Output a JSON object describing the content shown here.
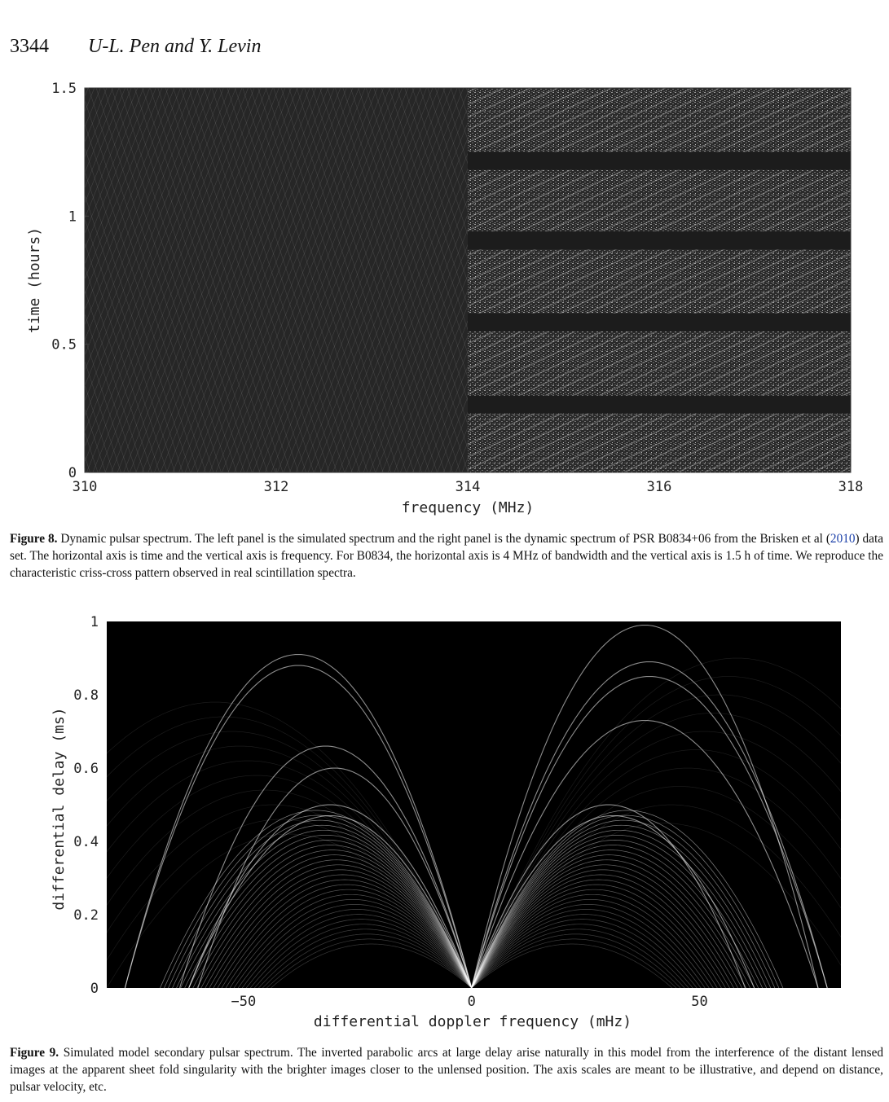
{
  "header": {
    "page_number": "3344",
    "authors": "U-L. Pen and Y. Levin"
  },
  "figure8": {
    "caption_label": "Figure 8.",
    "caption_pre": "Dynamic pulsar spectrum. The left panel is the simulated spectrum and the right panel is the dynamic spectrum of PSR B0834+06 from the Brisken et al (",
    "caption_cite": "2010",
    "caption_post": ") data set. The horizontal axis is time and the vertical axis is frequency. For B0834, the horizontal axis is 4 MHz of bandwidth and the vertical axis is 1.5 h of time. We reproduce the characteristic criss-cross pattern observed in real scintillation spectra.",
    "chart_data": {
      "type": "heatmap",
      "xlabel": "frequency (MHz)",
      "ylabel": "time (hours)",
      "xlim": [
        310,
        318
      ],
      "ylim": [
        0,
        1.5
      ],
      "xticks": [
        "310",
        "312",
        "314",
        "316",
        "318"
      ],
      "yticks": [
        "0",
        "0.5",
        "1",
        "1.5"
      ],
      "panels": [
        "simulated spectrum (310-314 MHz)",
        "PSR B0834+06 dynamic spectrum (314-318 MHz)"
      ],
      "masked_time_bands_hours": [
        [
          0.23,
          0.3
        ],
        [
          0.55,
          0.62
        ],
        [
          0.87,
          0.94
        ],
        [
          1.18,
          1.25
        ]
      ]
    }
  },
  "figure9": {
    "caption_label": "Figure 9.",
    "caption_text": "Simulated model secondary pulsar spectrum. The inverted parabolic arcs at large delay arise naturally in this model from the interference of the distant lensed images at the apparent sheet fold singularity with the brighter images closer to the unlensed position. The axis scales are meant to be illustrative, and depend on distance, pulsar velocity, etc.",
    "chart_data": {
      "type": "heatmap",
      "xlabel": "differential doppler frequency (mHz)",
      "ylabel": "differential delay (ms)",
      "xlim": [
        -80,
        81
      ],
      "ylim": [
        0,
        1
      ],
      "xticks": [
        "−50",
        "0",
        "50"
      ],
      "yticks": [
        "0",
        "0.2",
        "0.4",
        "0.6",
        "0.8",
        "1"
      ],
      "arc_apexes": [
        [
          -38,
          0.91
        ],
        [
          -38,
          0.88
        ],
        [
          -32,
          0.66
        ],
        [
          -30,
          0.6
        ],
        [
          -31,
          0.5
        ],
        [
          -31,
          0.47
        ],
        [
          38,
          0.99
        ],
        [
          39,
          0.89
        ],
        [
          39,
          0.85
        ],
        [
          38,
          0.73
        ],
        [
          30,
          0.5
        ],
        [
          31,
          0.47
        ]
      ]
    }
  }
}
